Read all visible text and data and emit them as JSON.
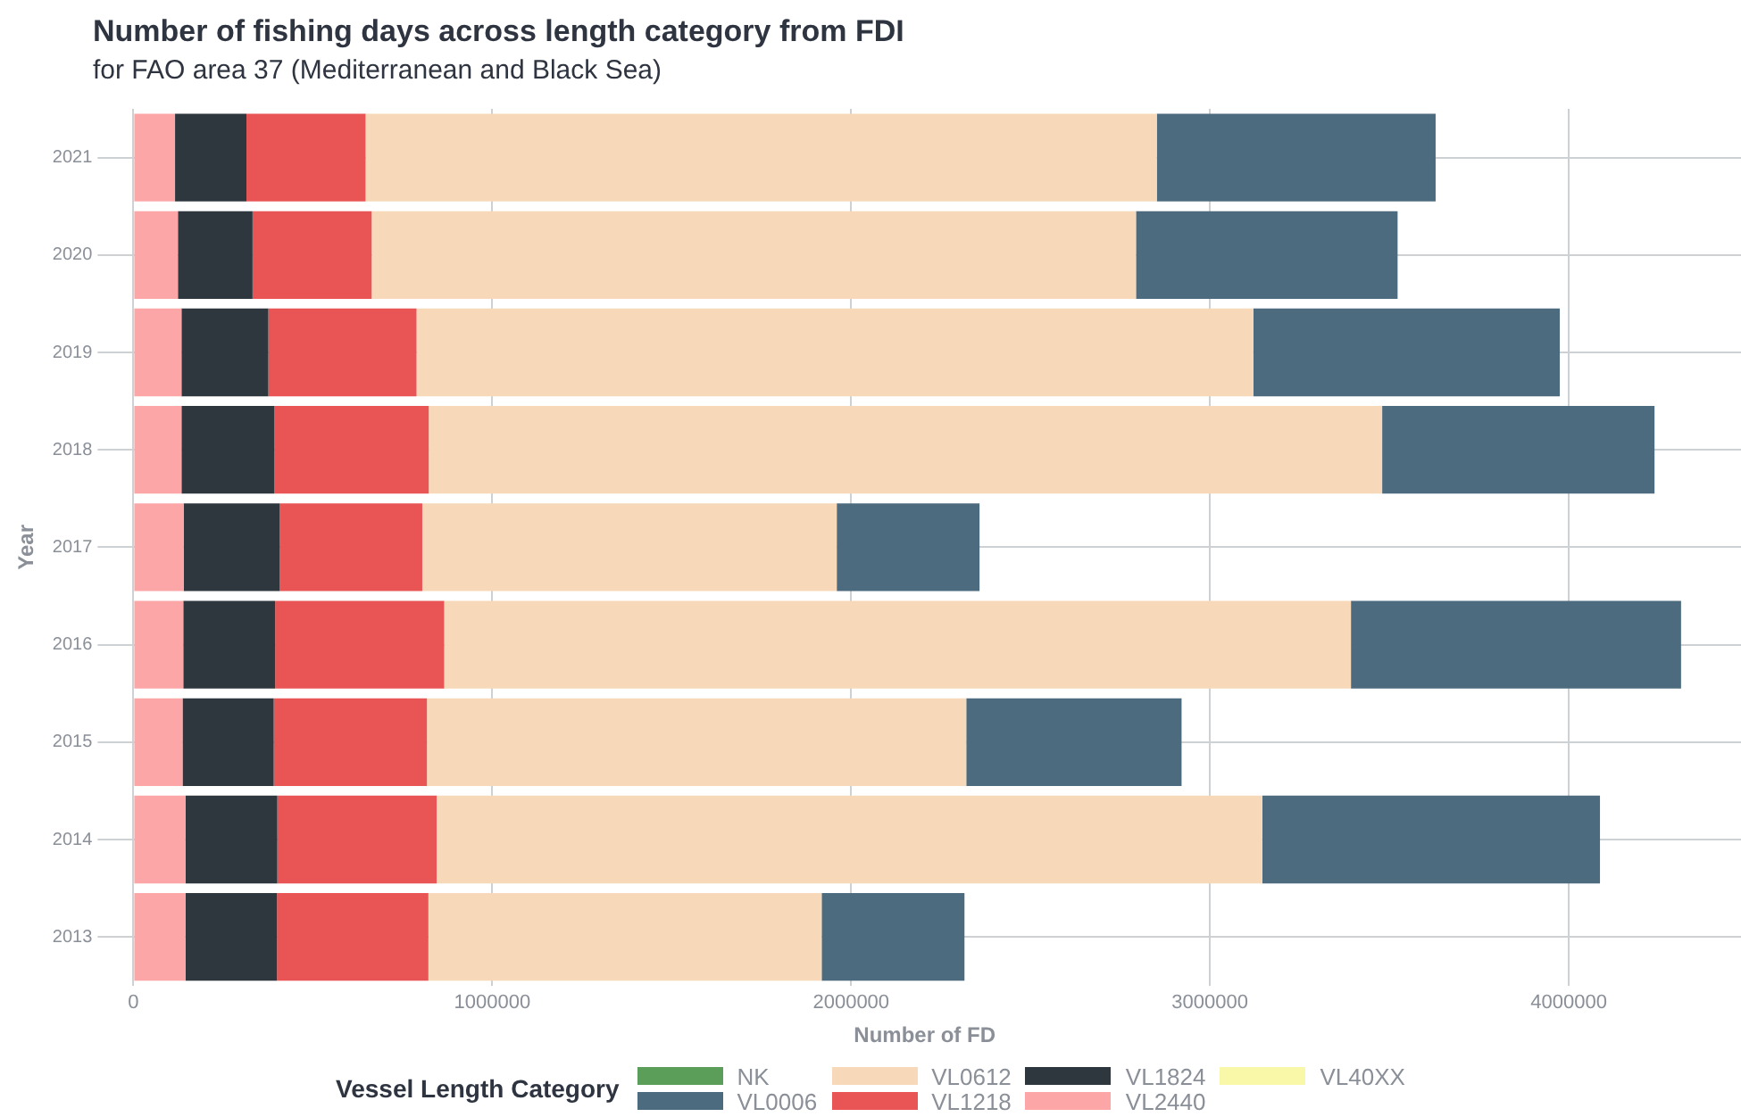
{
  "chart_data": {
    "type": "bar",
    "orientation": "horizontal",
    "stacked": true,
    "title": "Number of fishing days across length category from FDI",
    "subtitle": "for FAO area 37 (Mediterranean and Black Sea)",
    "xlabel": "Number of FD",
    "ylabel": "Year",
    "legend_title": "Vessel Length Category",
    "categories": [
      "2021",
      "2020",
      "2019",
      "2018",
      "2017",
      "2016",
      "2015",
      "2014",
      "2013"
    ],
    "xlim": [
      -70000,
      4480000
    ],
    "xticks": [
      0,
      1000000,
      2000000,
      3000000,
      4000000
    ],
    "grid": true,
    "legend": "bottom",
    "series": [
      {
        "name": "VL40XX",
        "color": "#f9f7a8",
        "values": [
          0,
          0,
          0,
          0,
          0,
          0,
          0,
          0,
          0
        ]
      },
      {
        "name": "VL2440",
        "color": "#fca6a7",
        "values": [
          116000,
          124000,
          134000,
          134000,
          140000,
          139000,
          137000,
          145000,
          145000
        ]
      },
      {
        "name": "VL1824",
        "color": "#2e363e",
        "values": [
          199000,
          208000,
          242000,
          259000,
          268000,
          256000,
          254000,
          256000,
          255000
        ]
      },
      {
        "name": "VL1218",
        "color": "#e95555",
        "values": [
          332000,
          332000,
          413000,
          430000,
          397000,
          471000,
          427000,
          444000,
          422000
        ]
      },
      {
        "name": "VL0612",
        "color": "#f7d9b9",
        "values": [
          2205000,
          2130000,
          2332000,
          2657000,
          1155000,
          2527000,
          1503000,
          2301000,
          1096000
        ]
      },
      {
        "name": "VL0006",
        "color": "#4d6b7f",
        "values": [
          777000,
          729000,
          854000,
          759000,
          398000,
          920000,
          600000,
          941000,
          398000
        ]
      },
      {
        "name": "NK",
        "color": "#5a9e5a",
        "values": [
          0,
          0,
          0,
          0,
          0,
          0,
          0,
          0,
          0
        ]
      }
    ]
  }
}
